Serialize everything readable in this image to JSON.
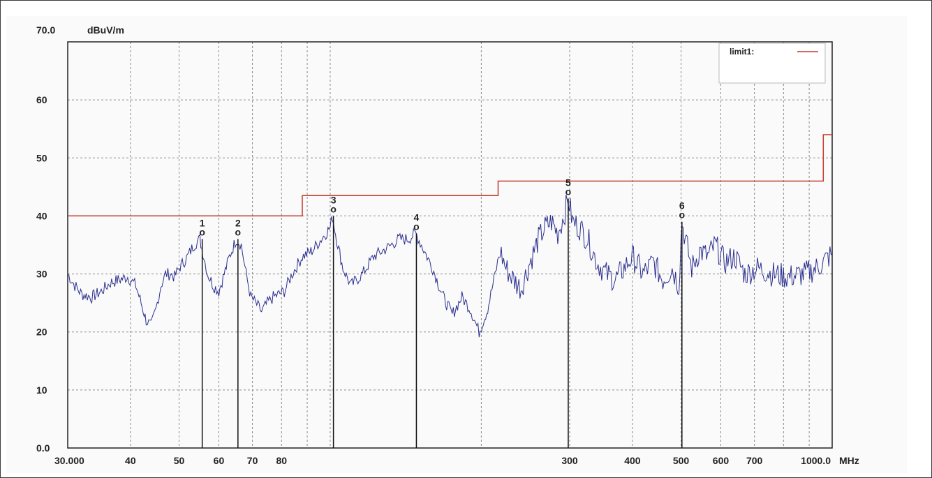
{
  "chart_data": {
    "type": "line",
    "title": "",
    "ylabel": "dBuV/m",
    "xunit": "MHz",
    "ylim": [
      0,
      70
    ],
    "xlim": [
      30,
      1000
    ],
    "xscale": "log",
    "grid": true,
    "legend_position": "top-right",
    "y_ticks": [
      {
        "value": 70,
        "label": "70.0"
      },
      {
        "value": 60,
        "label": "60"
      },
      {
        "value": 50,
        "label": "50"
      },
      {
        "value": 40,
        "label": "40"
      },
      {
        "value": 30,
        "label": "30"
      },
      {
        "value": 20,
        "label": "20"
      },
      {
        "value": 10,
        "label": "10"
      },
      {
        "value": 0,
        "label": "0.0"
      }
    ],
    "x_ticks": [
      {
        "value": 30,
        "label": "30.000"
      },
      {
        "value": 40,
        "label": "40"
      },
      {
        "value": 50,
        "label": "50"
      },
      {
        "value": 60,
        "label": "60"
      },
      {
        "value": 70,
        "label": "70"
      },
      {
        "value": 80,
        "label": "80"
      },
      {
        "value": 300,
        "label": "300"
      },
      {
        "value": 400,
        "label": "400"
      },
      {
        "value": 500,
        "label": "500"
      },
      {
        "value": 600,
        "label": "600"
      },
      {
        "value": 700,
        "label": "700"
      },
      {
        "value": 1000,
        "label": "1000.0"
      }
    ],
    "x_grid": [
      30,
      40,
      50,
      60,
      70,
      80,
      90,
      100,
      200,
      300,
      400,
      500,
      600,
      700,
      800,
      900,
      1000
    ],
    "legend": [
      {
        "name": "limit1:",
        "color": "#c0392b"
      }
    ],
    "limit_line": {
      "name": "limit1:",
      "color": "#c0392b",
      "points": [
        [
          30,
          40
        ],
        [
          88,
          40
        ],
        [
          88,
          43.5
        ],
        [
          216,
          43.5
        ],
        [
          216,
          46
        ],
        [
          960,
          46
        ],
        [
          960,
          54
        ],
        [
          1000,
          54
        ]
      ]
    },
    "trace": {
      "color": "#2b2f8f",
      "points": [
        [
          30,
          30
        ],
        [
          31,
          28
        ],
        [
          32,
          26.5
        ],
        [
          33.5,
          26
        ],
        [
          35,
          27
        ],
        [
          36.5,
          28.5
        ],
        [
          38,
          29
        ],
        [
          39.5,
          29.5
        ],
        [
          41,
          28
        ],
        [
          42,
          25
        ],
        [
          43,
          22
        ],
        [
          44,
          21
        ],
        [
          45,
          24
        ],
        [
          46,
          28
        ],
        [
          47,
          30
        ],
        [
          48,
          30
        ],
        [
          49,
          29.5
        ],
        [
          50,
          31
        ],
        [
          52,
          33
        ],
        [
          53.5,
          35
        ],
        [
          55,
          36
        ],
        [
          56,
          33
        ],
        [
          57,
          30
        ],
        [
          58.5,
          28
        ],
        [
          60,
          27
        ],
        [
          61.5,
          30
        ],
        [
          63,
          33
        ],
        [
          65,
          36
        ],
        [
          66.5,
          35
        ],
        [
          68,
          30
        ],
        [
          69.5,
          26
        ],
        [
          71,
          25
        ],
        [
          73,
          23.5
        ],
        [
          75,
          25
        ],
        [
          77,
          26
        ],
        [
          79,
          26.5
        ],
        [
          81,
          27
        ],
        [
          84,
          30
        ],
        [
          88,
          33
        ],
        [
          92,
          34
        ],
        [
          96,
          36
        ],
        [
          100,
          38
        ],
        [
          101,
          40
        ],
        [
          103,
          36
        ],
        [
          106,
          31
        ],
        [
          110,
          28
        ],
        [
          116,
          30
        ],
        [
          122,
          33
        ],
        [
          130,
          34.5
        ],
        [
          137,
          36
        ],
        [
          143,
          36
        ],
        [
          148,
          37
        ],
        [
          152,
          35
        ],
        [
          160,
          31
        ],
        [
          168,
          26
        ],
        [
          175,
          23
        ],
        [
          183,
          26
        ],
        [
          190,
          24
        ],
        [
          198,
          20
        ],
        [
          206,
          24
        ],
        [
          212,
          29
        ],
        [
          218,
          34
        ],
        [
          224,
          31
        ],
        [
          232,
          29
        ],
        [
          240,
          27.5
        ],
        [
          250,
          32
        ],
        [
          260,
          36
        ],
        [
          268,
          38
        ],
        [
          276,
          39
        ],
        [
          284,
          37
        ],
        [
          292,
          40
        ],
        [
          298,
          43
        ],
        [
          304,
          39
        ],
        [
          314,
          38
        ],
        [
          326,
          36
        ],
        [
          340,
          32
        ],
        [
          355,
          30
        ],
        [
          370,
          29
        ],
        [
          385,
          31
        ],
        [
          400,
          33
        ],
        [
          420,
          30
        ],
        [
          440,
          32
        ],
        [
          460,
          29
        ],
        [
          480,
          31
        ],
        [
          495,
          28
        ],
        [
          502,
          39
        ],
        [
          510,
          36
        ],
        [
          525,
          31
        ],
        [
          545,
          34
        ],
        [
          565,
          33
        ],
        [
          585,
          35
        ],
        [
          610,
          32
        ],
        [
          640,
          33
        ],
        [
          670,
          30
        ],
        [
          710,
          31
        ],
        [
          760,
          30
        ],
        [
          820,
          29.5
        ],
        [
          880,
          30
        ],
        [
          930,
          31
        ],
        [
          960,
          32
        ],
        [
          1000,
          33.5
        ]
      ]
    },
    "markers": [
      {
        "label": "1",
        "symbol": "o",
        "freq": 55.6,
        "level": 36
      },
      {
        "label": "2",
        "symbol": "o",
        "freq": 65.5,
        "level": 36
      },
      {
        "label": "3",
        "symbol": "o",
        "freq": 101.5,
        "level": 40
      },
      {
        "label": "4",
        "symbol": "o",
        "freq": 148.5,
        "level": 37
      },
      {
        "label": "5",
        "symbol": "o",
        "freq": 298,
        "level": 43
      },
      {
        "label": "6",
        "symbol": "o",
        "freq": 502,
        "level": 39
      }
    ]
  }
}
